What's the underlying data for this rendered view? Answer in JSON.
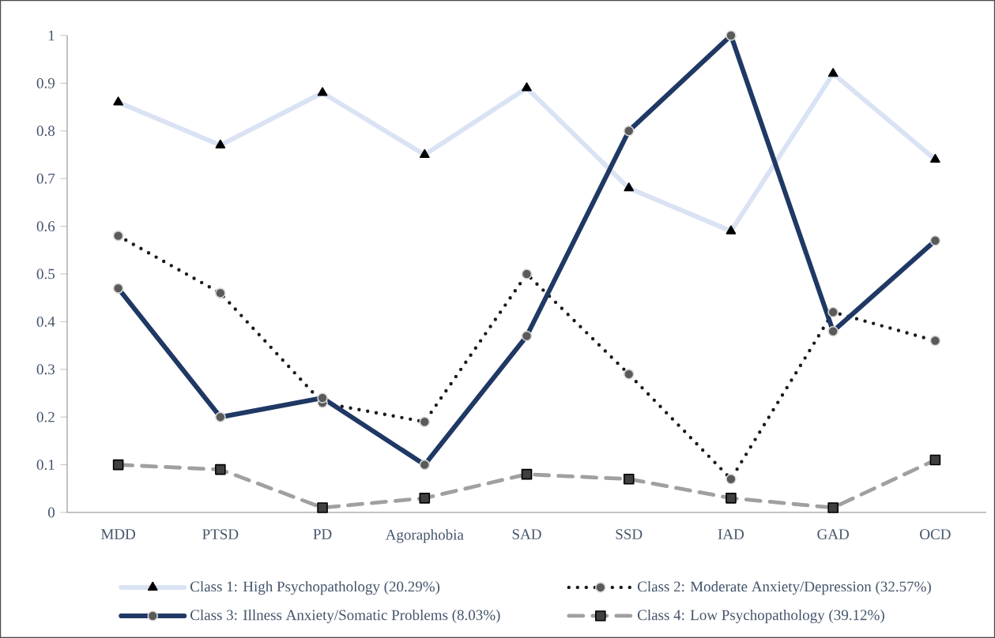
{
  "chart_data": {
    "type": "line",
    "categories": [
      "MDD",
      "PTSD",
      "PD",
      "Agoraphobia",
      "SAD",
      "SSD",
      "IAD",
      "GAD",
      "OCD"
    ],
    "series": [
      {
        "name": "Class 1: High Psychopathology (20.29%)",
        "color": "#dae3f3",
        "marker": "triangle",
        "line_style": "solid",
        "values": [
          0.86,
          0.77,
          0.88,
          0.75,
          0.89,
          0.68,
          0.59,
          0.92,
          0.74
        ]
      },
      {
        "name": "Class 2: Moderate Anxiety/Depression (32.57%)",
        "color": "#1a1a1a",
        "marker": "circle",
        "line_style": "dotted",
        "values": [
          0.58,
          0.46,
          0.23,
          0.19,
          0.5,
          0.29,
          0.07,
          0.42,
          0.36
        ]
      },
      {
        "name": "Class 3: Illness Anxiety/Somatic Problems (8.03%)",
        "color": "#1f3864",
        "marker": "circle",
        "line_style": "solid",
        "values": [
          0.47,
          0.2,
          0.24,
          0.1,
          0.37,
          0.8,
          1.0,
          0.38,
          0.57
        ]
      },
      {
        "name": "Class 4: Low Psychopathology (39.12%)",
        "color": "#a0a0a0",
        "marker": "square",
        "line_style": "dashed",
        "values": [
          0.1,
          0.09,
          0.01,
          0.03,
          0.08,
          0.07,
          0.03,
          0.01,
          0.11
        ]
      }
    ],
    "ylim": [
      0,
      1
    ],
    "yticks": [
      0,
      0.1,
      0.2,
      0.3,
      0.4,
      0.5,
      0.6,
      0.7,
      0.8,
      0.9,
      1
    ],
    "grid": false,
    "legend": "bottom"
  }
}
